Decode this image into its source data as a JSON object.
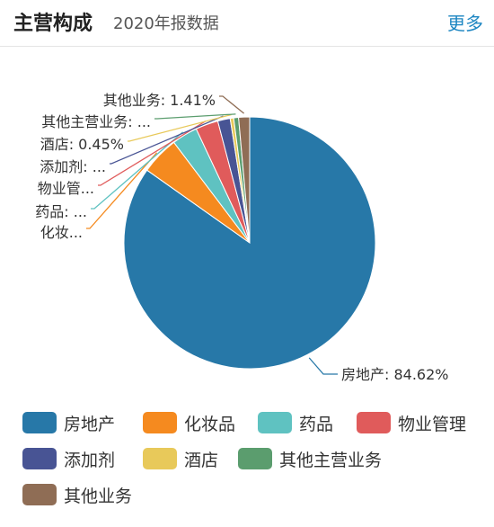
{
  "header": {
    "title": "主营构成",
    "subtitle": "2020年报数据",
    "more_label": "更多"
  },
  "chart_data": {
    "type": "pie",
    "title": "",
    "slices": [
      {
        "name": "房地产",
        "value": 84.62,
        "color": "#2778a8",
        "label": "房地产: 84.62%"
      },
      {
        "name": "化妆品",
        "value": 4.9,
        "color": "#f58a1f",
        "label": "化妆..."
      },
      {
        "name": "药品",
        "value": 3.3,
        "color": "#5fc2c1",
        "label": "药品: ..."
      },
      {
        "name": "物业管理",
        "value": 2.9,
        "color": "#e05b5b",
        "label": "物业管..."
      },
      {
        "name": "添加剂",
        "value": 1.6,
        "color": "#485494",
        "label": "添加剂: ..."
      },
      {
        "name": "酒店",
        "value": 0.45,
        "color": "#e8c95a",
        "label": "酒店: 0.45%"
      },
      {
        "name": "其他主营业务",
        "value": 0.62,
        "color": "#5b9d6e",
        "label": "其他主营业务: ..."
      },
      {
        "name": "其他业务",
        "value": 1.41,
        "color": "#8f6d55",
        "label": "其他业务: 1.41%"
      }
    ],
    "legend_placement": "bottom"
  }
}
